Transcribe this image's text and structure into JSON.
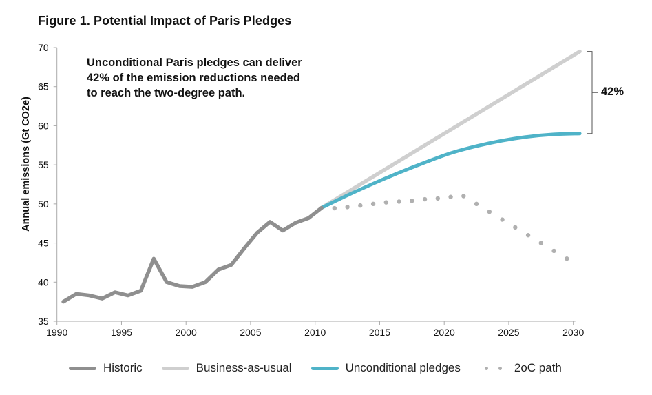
{
  "chart_data": {
    "type": "line",
    "title": "Figure 1. Potential Impact of Paris Pledges",
    "annotation": "Unconditional Paris pledges can deliver 42% of the emission reductions needed to reach the two-degree path.",
    "annotation_lines": [
      "Unconditional Paris pledges can deliver",
      "42% of the emission reductions needed",
      "to reach the two-degree path."
    ],
    "bracket_label": "42%",
    "xlabel": "",
    "ylabel": "Annual emissions (Gt CO2e)",
    "xlim": [
      1990,
      2030
    ],
    "ylim": [
      35,
      70
    ],
    "xticks": [
      1990,
      1995,
      2000,
      2005,
      2010,
      2015,
      2020,
      2025,
      2030
    ],
    "yticks": [
      35,
      40,
      45,
      50,
      55,
      60,
      65,
      70
    ],
    "grid": false,
    "legend_placement": "bottom",
    "series": [
      {
        "name": "Historic",
        "color": "#8f8f8f",
        "style": "solid",
        "x": [
          1990,
          1991,
          1992,
          1993,
          1994,
          1995,
          1996,
          1997,
          1998,
          1999,
          2000,
          2001,
          2002,
          2003,
          2004,
          2005,
          2006,
          2007,
          2008,
          2009,
          2010
        ],
        "values": [
          37.5,
          38.5,
          38.3,
          37.9,
          38.7,
          38.3,
          38.9,
          43.0,
          40.0,
          39.5,
          39.4,
          40.0,
          41.6,
          42.2,
          44.3,
          46.3,
          47.7,
          46.6,
          47.6,
          48.2,
          49.5
        ]
      },
      {
        "name": "Business-as-usual",
        "color": "#cfcfcf",
        "style": "solid",
        "x": [
          2010,
          2030
        ],
        "values": [
          49.5,
          69.5
        ]
      },
      {
        "name": "Unconditional pledges",
        "color": "#4fb3c8",
        "style": "solid",
        "x": [
          2010,
          2012,
          2014,
          2016,
          2018,
          2020,
          2022,
          2024,
          2026,
          2028,
          2030
        ],
        "values": [
          49.5,
          51.1,
          52.6,
          54.0,
          55.3,
          56.5,
          57.4,
          58.1,
          58.6,
          58.9,
          59.0
        ]
      },
      {
        "name": "2oC path",
        "color": "#b0b0b0",
        "style": "dotted",
        "x": [
          2011,
          2012,
          2013,
          2014,
          2015,
          2016,
          2017,
          2018,
          2019,
          2020,
          2021,
          2022,
          2023,
          2024,
          2025,
          2026,
          2027,
          2028,
          2029
        ],
        "values": [
          49.45,
          49.6,
          49.8,
          50.0,
          50.2,
          50.3,
          50.4,
          50.6,
          50.7,
          50.9,
          51.0,
          50.0,
          49.0,
          48.0,
          47.0,
          46.0,
          45.0,
          44.0,
          43.0
        ]
      }
    ],
    "axis_color": "#aaaaaa"
  }
}
